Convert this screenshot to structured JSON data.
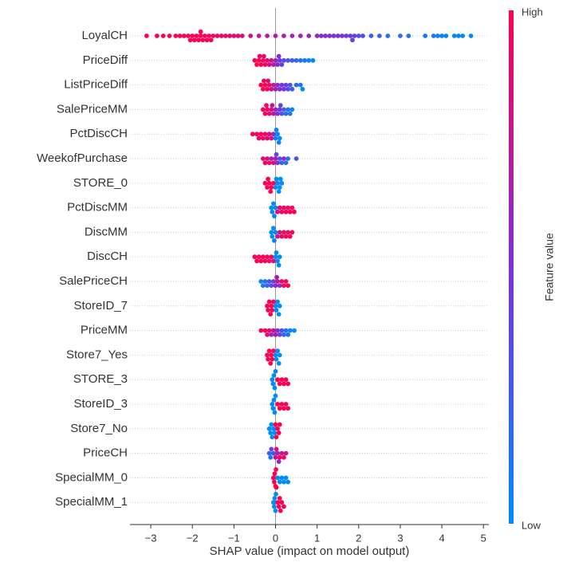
{
  "chart_data": {
    "type": "beeswarm",
    "xlabel": "SHAP value (impact on model output)",
    "xlim": [
      -3.5,
      5.13
    ],
    "xticks": [
      {
        "value": -3,
        "label": "−3"
      },
      {
        "value": -2,
        "label": "−2"
      },
      {
        "value": -1,
        "label": "−1"
      },
      0,
      1,
      2,
      3,
      4,
      5
    ],
    "colormap": {
      "low": "#008bfb",
      "mid": "#7d30d8",
      "high": "#ff0051"
    },
    "colorbar": {
      "label": "Feature value",
      "high": "High",
      "low": "Low"
    },
    "features": [
      {
        "name": "LoyalCH",
        "shap": [
          -3.1,
          -2.85,
          -2.7,
          -2.55,
          -2.4,
          -2.3,
          -2.2,
          -2.1,
          -2.05,
          -2.0,
          -1.95,
          -1.9,
          -1.85,
          -1.8,
          -1.8,
          -1.75,
          -1.7,
          -1.65,
          -1.6,
          -1.55,
          -1.5,
          -1.4,
          -1.3,
          -1.2,
          -1.1,
          -1.0,
          -0.9,
          -0.8,
          -0.6,
          -0.4,
          -0.2,
          0,
          0.2,
          0.4,
          0.6,
          0.8,
          1.0,
          1.1,
          1.2,
          1.3,
          1.4,
          1.5,
          1.6,
          1.7,
          1.8,
          1.85,
          1.9,
          2.0,
          2.1,
          2.3,
          2.5,
          2.7,
          3.0,
          3.2,
          3.6,
          3.8,
          3.9,
          4.0,
          4.1,
          4.3,
          4.4,
          4.5,
          4.7
        ],
        "feature_value": [
          1,
          1,
          1,
          1,
          1,
          0.98,
          1,
          0.97,
          1,
          0.98,
          1,
          0.97,
          1,
          0.98,
          1,
          0.96,
          1,
          0.97,
          0.95,
          1,
          0.95,
          0.94,
          0.93,
          0.92,
          0.9,
          0.9,
          0.88,
          0.85,
          0.8,
          0.75,
          0.72,
          0.7,
          0.68,
          0.65,
          0.62,
          0.6,
          0.58,
          0.55,
          0.55,
          0.52,
          0.5,
          0.5,
          0.48,
          0.45,
          0.45,
          0.42,
          0.4,
          0.35,
          0.3,
          0.25,
          0.2,
          0.18,
          0.15,
          0.12,
          0.1,
          0.08,
          0.06,
          0.05,
          0.04,
          0.03,
          0.02,
          0.01,
          0
        ]
      },
      {
        "name": "PriceDiff",
        "shap": [
          -0.5,
          -0.45,
          -0.4,
          -0.38,
          -0.35,
          -0.3,
          -0.28,
          -0.25,
          -0.2,
          -0.15,
          -0.1,
          -0.05,
          0,
          0.05,
          0.08,
          0.1,
          0.15,
          0.2,
          0.3,
          0.4,
          0.5,
          0.6,
          0.7,
          0.8,
          0.9
        ],
        "feature_value": [
          1,
          1,
          1,
          0.95,
          1,
          0.95,
          0.9,
          0.95,
          0.9,
          0.85,
          0.8,
          0.7,
          0.6,
          0.55,
          0.5,
          0.45,
          0.4,
          0.35,
          0.3,
          0.25,
          0.2,
          0.15,
          0.1,
          0.05,
          0
        ]
      },
      {
        "name": "ListPriceDiff",
        "shap": [
          -0.35,
          -0.3,
          -0.28,
          -0.25,
          -0.2,
          -0.18,
          -0.15,
          -0.1,
          -0.05,
          0,
          0.05,
          0.1,
          0.15,
          0.2,
          0.25,
          0.3,
          0.35,
          0.4,
          0.5,
          0.6,
          0.65
        ],
        "feature_value": [
          1,
          1,
          0.95,
          1,
          0.95,
          0.9,
          0.9,
          0.85,
          0.75,
          0.6,
          0.55,
          0.5,
          0.45,
          0.5,
          0.4,
          0.35,
          0.3,
          0.25,
          0.2,
          0.1,
          0
        ]
      },
      {
        "name": "SalePriceMM",
        "shap": [
          -0.3,
          -0.25,
          -0.22,
          -0.2,
          -0.15,
          -0.1,
          -0.08,
          -0.05,
          0,
          0.05,
          0.1,
          0.12,
          0.15,
          0.2,
          0.25,
          0.3,
          0.35,
          0.4
        ],
        "feature_value": [
          1,
          1,
          0.95,
          0.9,
          0.9,
          0.85,
          0.8,
          0.7,
          0.6,
          0.5,
          0.45,
          0.4,
          0.3,
          0.25,
          0.2,
          0.15,
          0.1,
          0
        ]
      },
      {
        "name": "PctDiscCH",
        "shap": [
          -0.55,
          -0.45,
          -0.4,
          -0.35,
          -0.3,
          -0.25,
          -0.2,
          -0.15,
          -0.1,
          -0.05,
          0,
          0.02,
          0.05,
          0.08,
          0.1
        ],
        "feature_value": [
          1,
          1,
          0.95,
          1,
          0.9,
          0.95,
          0.9,
          0.85,
          0.8,
          0.6,
          0.1,
          0.05,
          0,
          0.05,
          0
        ]
      },
      {
        "name": "WeekofPurchase",
        "shap": [
          -0.3,
          -0.25,
          -0.2,
          -0.15,
          -0.1,
          -0.05,
          0,
          0.02,
          0.05,
          0.1,
          0.15,
          0.2,
          0.25,
          0.3,
          0.5
        ],
        "feature_value": [
          0.9,
          1,
          0.8,
          0.95,
          0.6,
          0.85,
          0.7,
          0.4,
          0.5,
          0.3,
          0.2,
          0.6,
          0.15,
          0.1,
          0.3
        ]
      },
      {
        "name": "STORE_0",
        "shap": [
          -0.25,
          -0.2,
          -0.18,
          -0.15,
          -0.12,
          -0.1,
          -0.05,
          0,
          0.02,
          0.05,
          0.08,
          0.1,
          0.12,
          0.15
        ],
        "feature_value": [
          1,
          1,
          1,
          1,
          1,
          1,
          1,
          0,
          0,
          0,
          0,
          0,
          0,
          0
        ]
      },
      {
        "name": "PctDiscMM",
        "shap": [
          -0.1,
          -0.08,
          -0.05,
          -0.03,
          0,
          0.05,
          0.1,
          0.15,
          0.2,
          0.25,
          0.3,
          0.35,
          0.4,
          0.45
        ],
        "feature_value": [
          0,
          0,
          0,
          0.05,
          0.05,
          0.8,
          0.85,
          0.9,
          0.95,
          1,
          0.9,
          1,
          0.95,
          1
        ]
      },
      {
        "name": "DiscMM",
        "shap": [
          -0.1,
          -0.08,
          -0.05,
          -0.03,
          0,
          0.05,
          0.1,
          0.15,
          0.2,
          0.25,
          0.3,
          0.35,
          0.4
        ],
        "feature_value": [
          0,
          0,
          0,
          0.05,
          0.05,
          0.75,
          0.8,
          0.9,
          0.95,
          1,
          0.9,
          1,
          1
        ]
      },
      {
        "name": "DiscCH",
        "shap": [
          -0.5,
          -0.45,
          -0.4,
          -0.35,
          -0.3,
          -0.25,
          -0.2,
          -0.15,
          -0.1,
          -0.05,
          0,
          0.02,
          0.05,
          0.08,
          0.1
        ],
        "feature_value": [
          1,
          1,
          0.95,
          1,
          1,
          0.95,
          1,
          0.9,
          0.95,
          0.9,
          0,
          0,
          0,
          0,
          0
        ]
      },
      {
        "name": "SalePriceCH",
        "shap": [
          -0.35,
          -0.3,
          -0.25,
          -0.2,
          -0.15,
          -0.1,
          -0.05,
          0,
          0.03,
          0.05,
          0.1,
          0.15,
          0.2,
          0.25,
          0.3
        ],
        "feature_value": [
          0.05,
          0.1,
          0.15,
          0.2,
          0.3,
          0.35,
          0.4,
          0.6,
          0.7,
          0.8,
          0.5,
          0.9,
          0.95,
          1,
          1
        ]
      },
      {
        "name": "StoreID_7",
        "shap": [
          -0.2,
          -0.18,
          -0.15,
          -0.12,
          -0.1,
          -0.08,
          -0.05,
          0,
          0.02,
          0.05,
          0.08,
          0.1
        ],
        "feature_value": [
          1,
          1,
          1,
          1,
          1,
          1,
          1,
          0,
          0,
          0,
          0,
          0
        ]
      },
      {
        "name": "PriceMM",
        "shap": [
          -0.35,
          -0.25,
          -0.2,
          -0.15,
          -0.1,
          -0.05,
          0,
          0.05,
          0.1,
          0.15,
          0.2,
          0.25,
          0.3,
          0.35,
          0.45
        ],
        "feature_value": [
          0.95,
          1,
          0.9,
          0.85,
          0.6,
          0.8,
          0.7,
          0.5,
          0.4,
          0.3,
          0.2,
          0.15,
          0.1,
          0.05,
          0
        ]
      },
      {
        "name": "Store7_Yes",
        "shap": [
          -0.2,
          -0.18,
          -0.15,
          -0.12,
          -0.1,
          -0.08,
          -0.05,
          0,
          0.02,
          0.05,
          0.08,
          0.1
        ],
        "feature_value": [
          1,
          1,
          1,
          1,
          1,
          1,
          1,
          0,
          0,
          0,
          0,
          0
        ]
      },
      {
        "name": "STORE_3",
        "shap": [
          -0.08,
          -0.06,
          -0.04,
          -0.02,
          0,
          0.05,
          0.1,
          0.15,
          0.2,
          0.25,
          0.3
        ],
        "feature_value": [
          0,
          0,
          0,
          0,
          0,
          1,
          1,
          1,
          1,
          1,
          1
        ]
      },
      {
        "name": "StoreID_3",
        "shap": [
          -0.08,
          -0.06,
          -0.04,
          -0.02,
          0,
          0.05,
          0.1,
          0.15,
          0.2,
          0.25,
          0.3
        ],
        "feature_value": [
          0,
          0,
          0,
          0,
          0,
          1,
          1,
          1,
          1,
          1,
          1
        ]
      },
      {
        "name": "Store7_No",
        "shap": [
          -0.15,
          -0.12,
          -0.1,
          -0.08,
          -0.05,
          -0.02,
          0,
          0.02,
          0.05,
          0.08,
          0.1
        ],
        "feature_value": [
          0,
          0,
          0,
          0,
          0,
          0,
          1,
          1,
          1,
          1,
          1
        ]
      },
      {
        "name": "PriceCH",
        "shap": [
          -0.15,
          -0.12,
          -0.1,
          -0.05,
          0,
          0.02,
          0.05,
          0.08,
          0.1,
          0.15,
          0.2,
          0.25
        ],
        "feature_value": [
          0.2,
          0.1,
          0.4,
          0.3,
          0.8,
          0.9,
          0.6,
          0.5,
          1,
          0.7,
          0.9,
          0.85
        ]
      },
      {
        "name": "SpecialMM_0",
        "shap": [
          -0.05,
          -0.03,
          -0.02,
          0,
          0.01,
          0.02,
          0.05,
          0.1,
          0.15,
          0.2,
          0.25,
          0.3
        ],
        "feature_value": [
          1,
          1,
          1,
          1,
          1,
          1,
          0,
          0,
          0,
          0,
          0,
          0
        ]
      },
      {
        "name": "SpecialMM_1",
        "shap": [
          -0.05,
          -0.03,
          -0.02,
          0,
          0.01,
          0.05,
          0.08,
          0.1,
          0.12,
          0.15,
          0.2
        ],
        "feature_value": [
          0,
          0,
          0,
          0,
          0,
          1,
          1,
          1,
          1,
          1,
          1
        ]
      }
    ]
  }
}
